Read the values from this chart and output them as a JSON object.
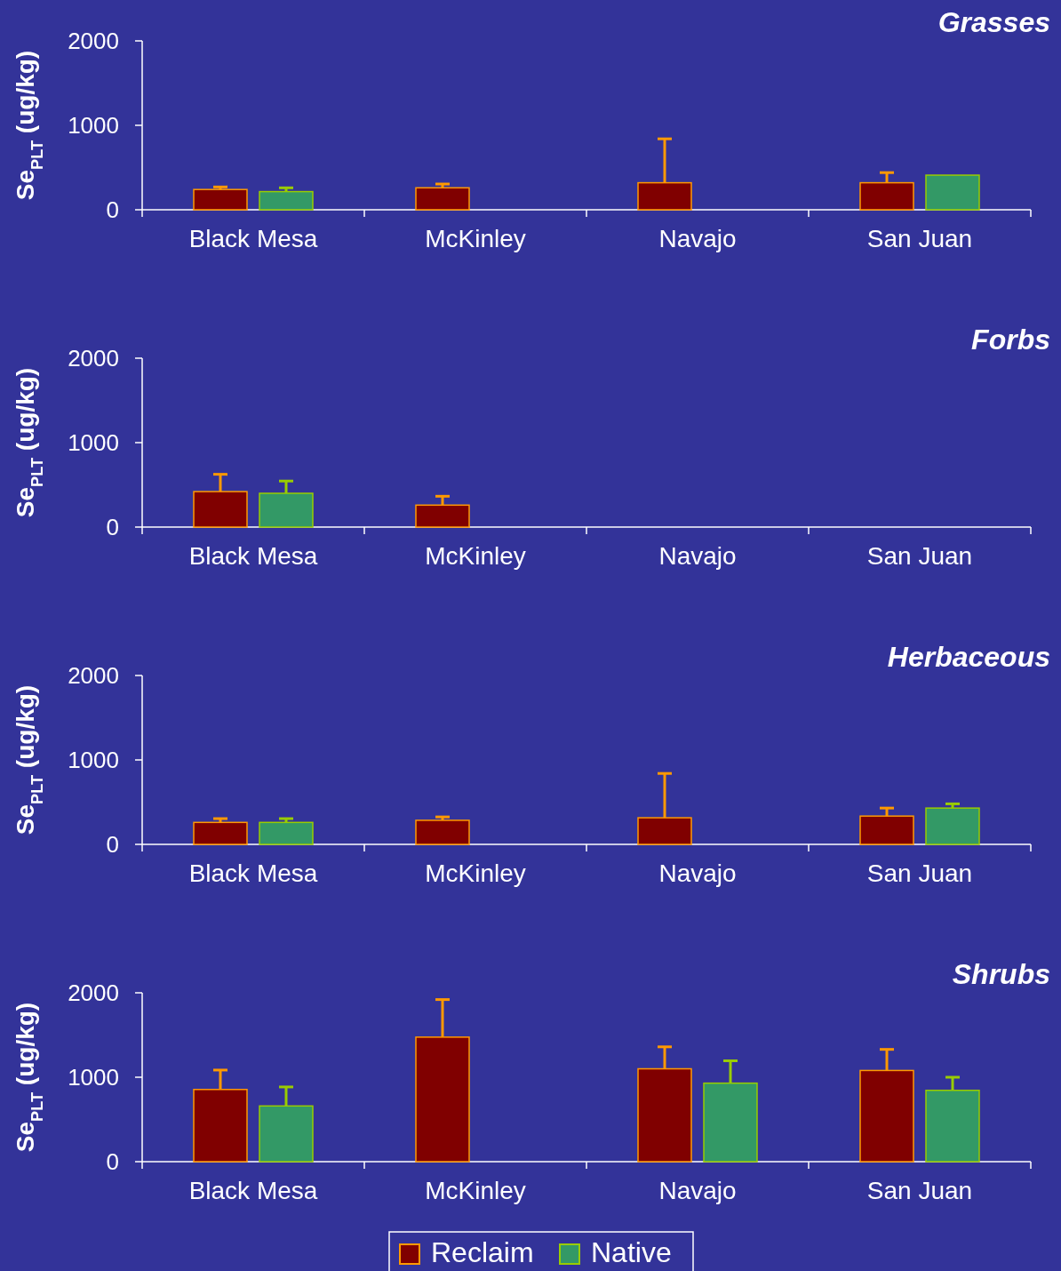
{
  "chart_data": [
    {
      "type": "bar",
      "title": "Grasses",
      "ylabel": "Se$_{PLT}$ (ug/kg)",
      "categories": [
        "Black Mesa",
        "McKinley",
        "Navajo",
        "San Juan"
      ],
      "ylim": [
        0,
        2000
      ],
      "yticks": [
        0,
        1000,
        2000
      ],
      "series": [
        {
          "color": "#800000",
          "values": [
            240,
            260,
            320,
            320
          ],
          "errors": [
            [
              240,
              270
            ],
            [
              260,
              305
            ],
            [
              320,
              840
            ],
            [
              320,
              440
            ]
          ]
        },
        {
          "color": "#339966",
          "values": [
            215,
            null,
            null,
            410
          ],
          "errors": [
            [
              215,
              260
            ],
            null,
            null,
            null
          ]
        }
      ]
    },
    {
      "type": "bar",
      "title": "Forbs",
      "ylabel": "Se$_{PLT}$ (ug/kg)",
      "categories": [
        "Black Mesa",
        "McKinley",
        "Navajo",
        "San Juan"
      ],
      "ylim": [
        0,
        2000
      ],
      "yticks": [
        0,
        1000,
        2000
      ],
      "series": [
        {
          "color": "#800000",
          "values": [
            420,
            260,
            null,
            null
          ],
          "errors": [
            [
              420,
              625
            ],
            [
              260,
              365
            ],
            null,
            null
          ]
        },
        {
          "color": "#339966",
          "values": [
            400,
            null,
            null,
            null
          ],
          "errors": [
            [
              400,
              545
            ],
            null,
            null,
            null
          ]
        }
      ]
    },
    {
      "type": "bar",
      "title": "Herbaceous",
      "ylabel": "Se$_{PLT}$ (ug/kg)",
      "categories": [
        "Black Mesa",
        "McKinley",
        "Navajo",
        "San Juan"
      ],
      "ylim": [
        0,
        2000
      ],
      "yticks": [
        0,
        1000,
        2000
      ],
      "series": [
        {
          "color": "#800000",
          "values": [
            260,
            285,
            315,
            335
          ],
          "errors": [
            [
              260,
              305
            ],
            [
              285,
              325
            ],
            [
              315,
              840
            ],
            [
              335,
              430
            ]
          ]
        },
        {
          "color": "#339966",
          "values": [
            260,
            null,
            null,
            430
          ],
          "errors": [
            [
              260,
              305
            ],
            null,
            null,
            [
              430,
              480
            ]
          ]
        }
      ]
    },
    {
      "type": "bar",
      "title": "Shrubs",
      "ylabel": "Se$_{PLT}$ (ug/kg)",
      "categories": [
        "Black Mesa",
        "McKinley",
        "Navajo",
        "San Juan"
      ],
      "ylim": [
        0,
        2000
      ],
      "yticks": [
        0,
        1000,
        2000
      ],
      "legend": "bottom",
      "series": [
        {
          "name": "Reclaim",
          "color": "#800000",
          "values": [
            855,
            1475,
            1100,
            1080
          ],
          "errors": [
            [
              855,
              1085
            ],
            [
              1475,
              1920
            ],
            [
              1100,
              1360
            ],
            [
              1080,
              1330
            ]
          ]
        },
        {
          "name": "Native",
          "color": "#339966",
          "values": [
            660,
            null,
            930,
            845
          ],
          "errors": [
            [
              660,
              885
            ],
            null,
            [
              930,
              1195
            ],
            [
              845,
              1000
            ]
          ]
        }
      ]
    }
  ]
}
